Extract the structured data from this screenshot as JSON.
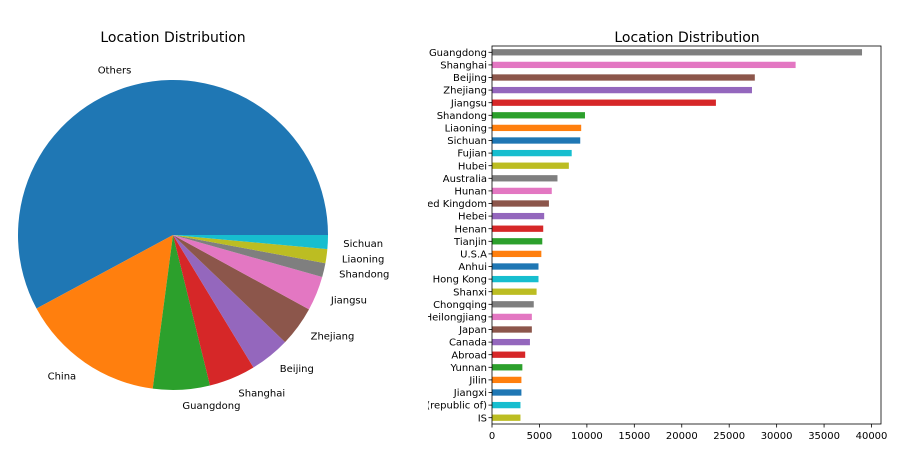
{
  "chart_data": [
    {
      "type": "pie",
      "title": "Location Distribution",
      "slices": [
        {
          "label": "Others",
          "value": 59.6,
          "color": "#1f77b4"
        },
        {
          "label": "China",
          "value": 15.5,
          "color": "#ff7f0e"
        },
        {
          "label": "Guangdong",
          "value": 6.1,
          "color": "#2ca02c"
        },
        {
          "label": "Shanghai",
          "value": 5.0,
          "color": "#d62728"
        },
        {
          "label": "Beijing",
          "value": 4.3,
          "color": "#9467bd"
        },
        {
          "label": "Zhejiang",
          "value": 4.3,
          "color": "#8c564b"
        },
        {
          "label": "Jiangsu",
          "value": 3.7,
          "color": "#e377c2"
        },
        {
          "label": "Shandong",
          "value": 1.5,
          "color": "#7f7f7f"
        },
        {
          "label": "Liaoning",
          "value": 1.5,
          "color": "#bcbd22"
        },
        {
          "label": "Sichuan",
          "value": 1.5,
          "color": "#17becf"
        }
      ]
    },
    {
      "type": "bar",
      "orientation": "horizontal",
      "title": "Location Distribution",
      "xlim": [
        0,
        41000
      ],
      "xticks": [
        0,
        5000,
        10000,
        15000,
        20000,
        25000,
        30000,
        35000,
        40000
      ],
      "xtick_labels": [
        "0",
        "5000",
        "10000",
        "15000",
        "20000",
        "25000",
        "30000",
        "35000",
        "40000"
      ],
      "categories": [
        "Guangdong",
        "Shanghai",
        "Beijing",
        "Zhejiang",
        "Jiangsu",
        "Shandong",
        "Liaoning",
        "Sichuan",
        "Fujian",
        "Hubei",
        "Australia",
        "Hunan",
        "ed Kingdom",
        "Hebei",
        "Henan",
        "Tianjin",
        "U.S.A",
        "Anhui",
        "Hong Kong",
        "Shanxi",
        "Chongqing",
        "Heilongjiang",
        "Japan",
        "Canada",
        "Abroad",
        "Yunnan",
        "Jilin",
        "Jiangxi",
        "(republic of)",
        "IS"
      ],
      "values": [
        39000,
        32000,
        27700,
        27400,
        23600,
        9800,
        9400,
        9300,
        8400,
        8100,
        6900,
        6300,
        6000,
        5500,
        5400,
        5300,
        5200,
        4900,
        4900,
        4700,
        4400,
        4200,
        4200,
        4000,
        3500,
        3200,
        3100,
        3100,
        3000,
        3000
      ],
      "colors": [
        "#7f7f7f",
        "#e377c2",
        "#8c564b",
        "#9467bd",
        "#d62728",
        "#2ca02c",
        "#ff7f0e",
        "#1f77b4",
        "#17becf",
        "#bcbd22"
      ]
    }
  ]
}
